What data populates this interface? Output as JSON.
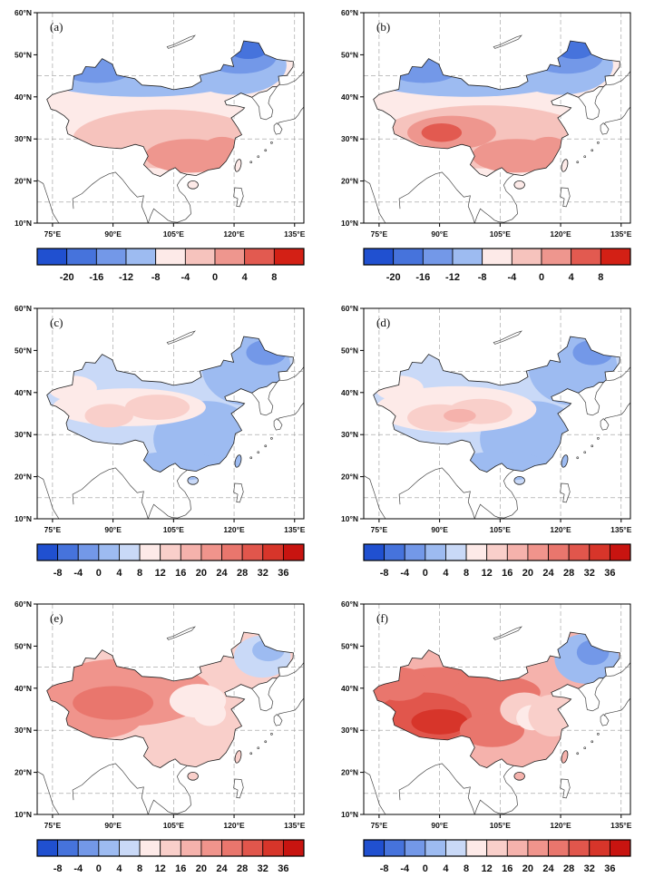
{
  "figure": {
    "background": "#ffffff",
    "map_region": "China",
    "outline_color": "#222222",
    "coast_color": "#444444",
    "grid_color": "#999999",
    "lat_tick_labels": [
      "60°N",
      "50°N",
      "40°N",
      "30°N",
      "20°N",
      "10°N"
    ],
    "lat_tick_values": [
      60,
      50,
      40,
      30,
      20,
      10
    ],
    "lon_tick_labels": [
      "75°E",
      "90°E",
      "105°E",
      "120°E",
      "135°E"
    ],
    "lon_tick_values": [
      75,
      90,
      105,
      120,
      135
    ],
    "panels": [
      {
        "id": "a",
        "label": "(a)",
        "colorbar_tick_labels": [
          "-20",
          "-16",
          "-12",
          "-8",
          "-4",
          "0",
          "4",
          "8"
        ],
        "palette": [
          "#2050d0",
          "#4673dc",
          "#7398e8",
          "#9dbbf1",
          "#fdeae8",
          "#f6c3bd",
          "#ee968e",
          "#e25a50",
          "#d32015"
        ]
      },
      {
        "id": "b",
        "label": "(b)",
        "colorbar_tick_labels": [
          "-20",
          "-16",
          "-12",
          "-8",
          "-4",
          "0",
          "4",
          "8"
        ],
        "palette": [
          "#2050d0",
          "#4673dc",
          "#7398e8",
          "#9dbbf1",
          "#fdeae8",
          "#f6c3bd",
          "#ee968e",
          "#e25a50",
          "#d32015"
        ]
      },
      {
        "id": "c",
        "label": "(c)",
        "colorbar_tick_labels": [
          "-8",
          "-4",
          "0",
          "4",
          "8",
          "12",
          "16",
          "20",
          "24",
          "28",
          "32",
          "36"
        ],
        "palette": [
          "#2050d0",
          "#4673dc",
          "#7398e8",
          "#9dbbf1",
          "#c9d9f7",
          "#fdeae8",
          "#f9cfca",
          "#f5b2ac",
          "#f0948c",
          "#e9766d",
          "#e1564c",
          "#d7352a",
          "#c81410"
        ]
      },
      {
        "id": "d",
        "label": "(d)",
        "colorbar_tick_labels": [
          "-8",
          "-4",
          "0",
          "4",
          "8",
          "12",
          "16",
          "20",
          "24",
          "28",
          "32",
          "36"
        ],
        "palette": [
          "#2050d0",
          "#4673dc",
          "#7398e8",
          "#9dbbf1",
          "#c9d9f7",
          "#fdeae8",
          "#f9cfca",
          "#f5b2ac",
          "#f0948c",
          "#e9766d",
          "#e1564c",
          "#d7352a",
          "#c81410"
        ]
      },
      {
        "id": "e",
        "label": "(e)",
        "colorbar_tick_labels": [
          "-8",
          "-4",
          "0",
          "4",
          "8",
          "12",
          "16",
          "20",
          "24",
          "28",
          "32",
          "36"
        ],
        "palette": [
          "#2050d0",
          "#4673dc",
          "#7398e8",
          "#9dbbf1",
          "#c9d9f7",
          "#fdeae8",
          "#f9cfca",
          "#f5b2ac",
          "#f0948c",
          "#e9766d",
          "#e1564c",
          "#d7352a",
          "#c81410"
        ]
      },
      {
        "id": "f",
        "label": "(f)",
        "colorbar_tick_labels": [
          "-8",
          "-4",
          "0",
          "4",
          "8",
          "12",
          "16",
          "20",
          "24",
          "28",
          "32",
          "36"
        ],
        "palette": [
          "#2050d0",
          "#4673dc",
          "#7398e8",
          "#9dbbf1",
          "#c9d9f7",
          "#fdeae8",
          "#f9cfca",
          "#f5b2ac",
          "#f0948c",
          "#e9766d",
          "#e1564c",
          "#d7352a",
          "#c81410"
        ]
      }
    ]
  },
  "chart_data": [
    {
      "type": "heatmap",
      "panel": "(a)",
      "region": "China",
      "x": "longitude 75°E–135°E",
      "y": "latitude 10°N–60°N",
      "levels": [
        -20,
        -16,
        -12,
        -8,
        -4,
        0,
        4,
        8
      ],
      "legend_position": "bottom colorbar",
      "pattern": "negative (blue) values over northern China: Xinjiang, Inner Mongolia and the Northeast (down to about -16); weak positive pale-pink to red values (0 to 8) over central and southern China"
    },
    {
      "type": "heatmap",
      "panel": "(b)",
      "region": "China",
      "x": "longitude 75°E–135°E",
      "y": "latitude 10°N–60°N",
      "levels": [
        -20,
        -16,
        -12,
        -8,
        -4,
        0,
        4,
        8
      ],
      "legend_position": "bottom colorbar",
      "pattern": "similar to (a) but with a stronger warm (red) center over the Tibetan Plateau near 90°E, 31°N"
    },
    {
      "type": "heatmap",
      "panel": "(c)",
      "region": "China",
      "x": "longitude 75°E–135°E",
      "y": "latitude 10°N–60°N",
      "levels": [
        -8,
        -4,
        0,
        4,
        8,
        12,
        16,
        20,
        24,
        28,
        32,
        36
      ],
      "legend_position": "bottom colorbar",
      "pattern": "mostly light blue (about 0–8) nationwide with a pale pink band (8–16) stretching west-to-central China around 32–40°N; slightly deeper blue over the Northeast and Southeast"
    },
    {
      "type": "heatmap",
      "panel": "(d)",
      "region": "China",
      "x": "longitude 75°E–135°E",
      "y": "latitude 10°N–60°N",
      "levels": [
        -8,
        -4,
        0,
        4,
        8,
        12,
        16,
        20,
        24,
        28,
        32,
        36
      ],
      "legend_position": "bottom colorbar",
      "pattern": "as (c) but with a broader and slightly stronger pink band (up to about 20) over the Tibetan Plateau and the northwest"
    },
    {
      "type": "heatmap",
      "panel": "(e)",
      "region": "China",
      "x": "longitude 75°E–135°E",
      "y": "latitude 10°N–60°N",
      "levels": [
        -8,
        -4,
        0,
        4,
        8,
        12,
        16,
        20,
        24,
        28,
        32,
        36
      ],
      "legend_position": "bottom colorbar",
      "pattern": "widespread pink-red values (about 16–28) over most of China, strongest in the west and northwest; pale patch in the central-east; small light-blue patch in the far northeast"
    },
    {
      "type": "heatmap",
      "panel": "(f)",
      "region": "China",
      "x": "longitude 75°E–135°E",
      "y": "latitude 10°N–60°N",
      "levels": [
        -8,
        -4,
        0,
        4,
        8,
        12,
        16,
        20,
        24,
        28,
        32,
        36
      ],
      "legend_position": "bottom colorbar",
      "pattern": "strongest reds (about 24–36) over western and central China, pale patch in the central-east, light-blue patch (0–8) in the far northeast"
    }
  ]
}
